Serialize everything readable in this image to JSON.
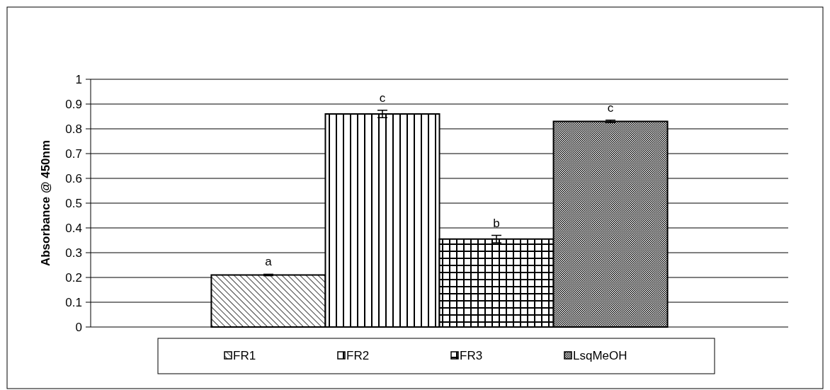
{
  "chart_data": {
    "type": "bar",
    "ylabel": "Absorbance @ 450nm",
    "categories": [
      null
    ],
    "series": [
      {
        "name": "FR1",
        "color": "#000000",
        "values": [
          0.21
        ],
        "errors": [
          0.003
        ]
      },
      {
        "name": "FR2",
        "color": "#000000",
        "values": [
          0.86
        ],
        "errors": [
          0.015
        ]
      },
      {
        "name": "FR3",
        "color": "#000000",
        "values": [
          0.355
        ],
        "errors": [
          0.015
        ]
      },
      {
        "name": "LsqMeOH",
        "color": "#000000",
        "values": [
          0.83
        ],
        "errors": [
          0.005
        ]
      }
    ],
    "annotations": [
      "a",
      "c",
      "b",
      "c"
    ],
    "ylim": [
      0,
      1
    ],
    "yticks": [
      0,
      0.1,
      0.2,
      0.3,
      0.4,
      0.5,
      0.6,
      0.7,
      0.8,
      0.9,
      1
    ],
    "grid": "y",
    "legend": "bottom"
  }
}
